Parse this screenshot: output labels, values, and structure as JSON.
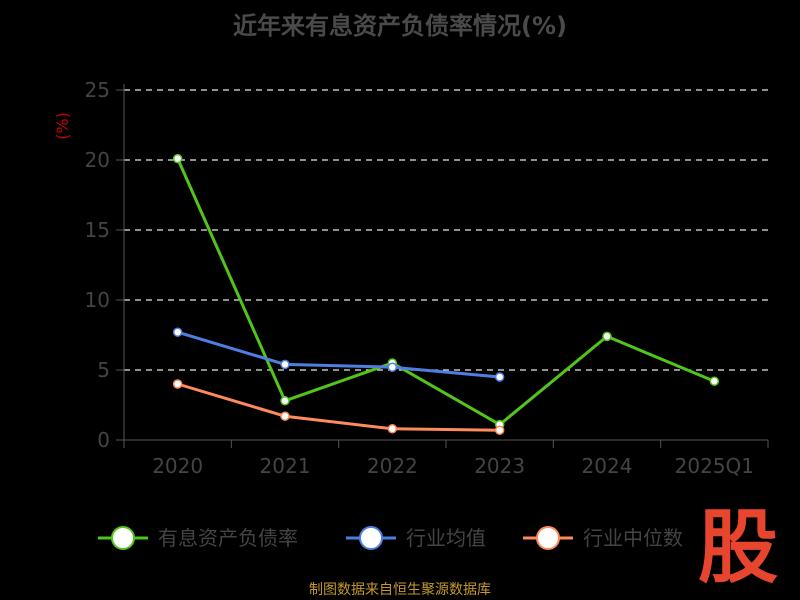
{
  "chart_data": {
    "type": "line",
    "title": "近年来有息资产负债率情况(%)",
    "ylabel": "(%)",
    "categories": [
      "2020",
      "2021",
      "2022",
      "2023",
      "2024",
      "2025Q1"
    ],
    "ylim": [
      0,
      25
    ],
    "yticks": [
      0,
      5,
      10,
      15,
      20,
      25
    ],
    "grid": true,
    "legend_position": "bottom",
    "series": [
      {
        "name": "有息资产负债率",
        "color": "#52c41a",
        "values": [
          20.1,
          2.8,
          5.5,
          1.1,
          7.4,
          4.2
        ]
      },
      {
        "name": "行业均值",
        "color": "#4e7fe0",
        "values": [
          7.7,
          5.4,
          5.2,
          4.5,
          null,
          null
        ]
      },
      {
        "name": "行业中位数",
        "color": "#ff8a5b",
        "values": [
          4.0,
          1.7,
          0.8,
          0.7,
          null,
          null
        ]
      }
    ]
  },
  "source_text": "制图数据来自恒生聚源数据库",
  "watermark_text": "股"
}
